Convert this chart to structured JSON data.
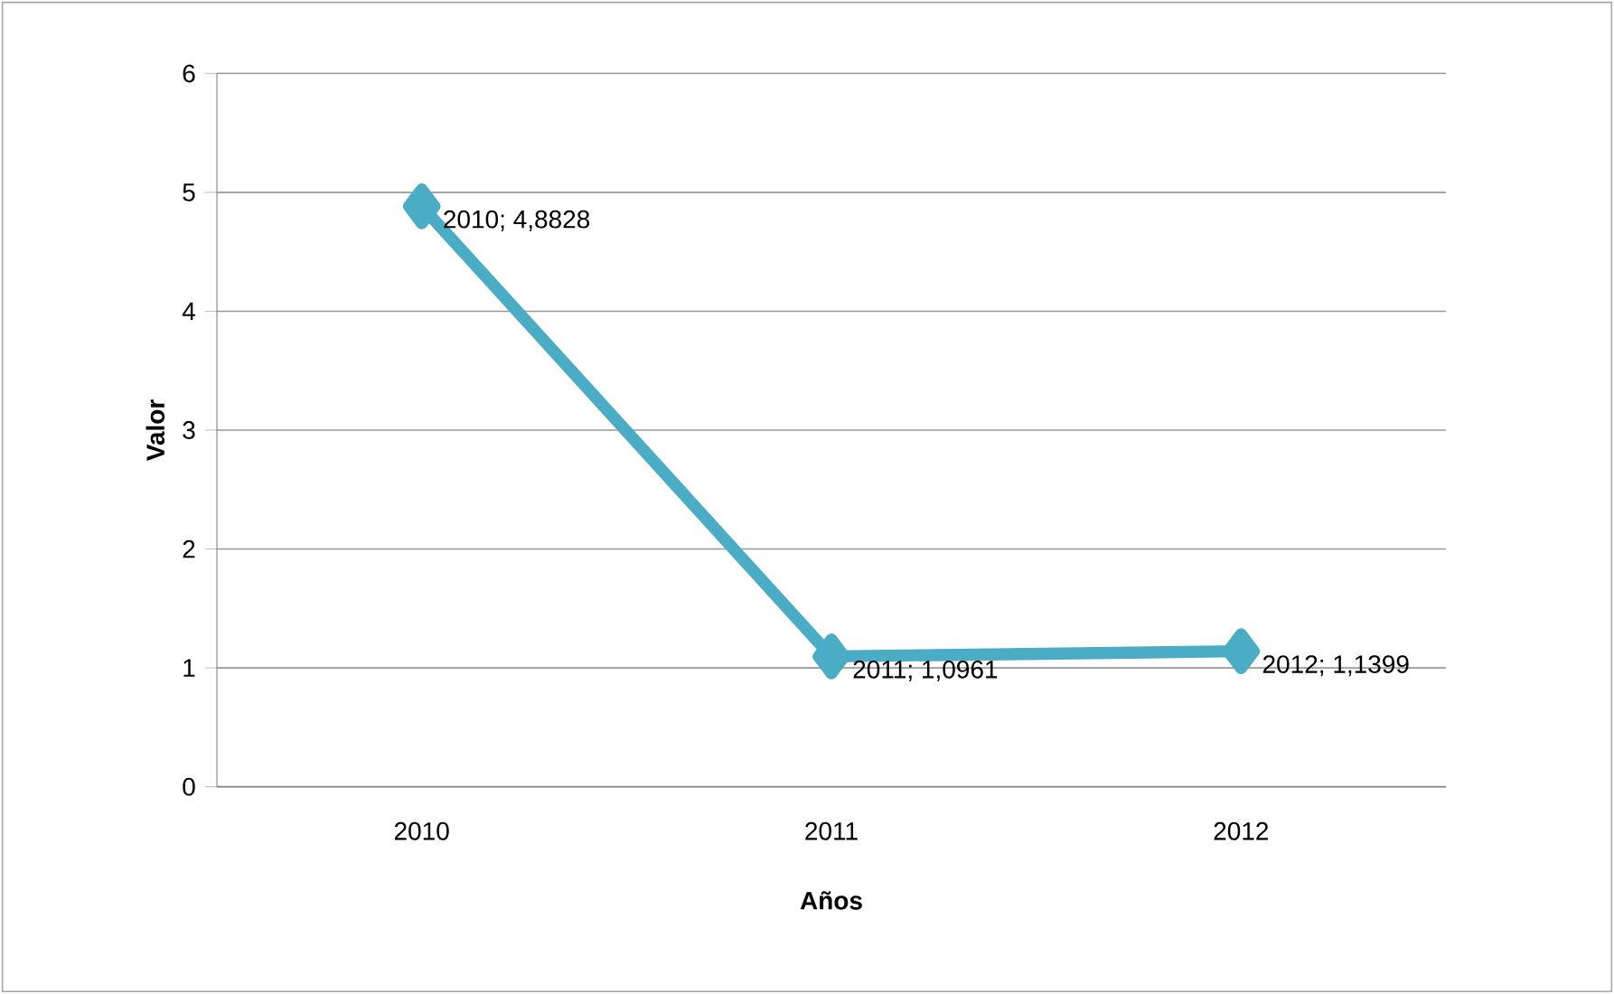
{
  "chart_data": {
    "type": "line",
    "xlabel": "Años",
    "ylabel": "Valor",
    "categories": [
      "2010",
      "2011",
      "2012"
    ],
    "series": [
      {
        "color": "#4bacc6",
        "values": [
          4.8828,
          1.0961,
          1.1399
        ]
      }
    ],
    "value_labels": [
      "2010; 4,8828",
      "2011; 1,0961",
      "2012; 1,1399"
    ],
    "ylim": [
      0,
      6
    ],
    "yticks": [
      0,
      1,
      2,
      3,
      4,
      5,
      6
    ],
    "grid": "y",
    "marker": "diamond",
    "line_style": "solid"
  }
}
